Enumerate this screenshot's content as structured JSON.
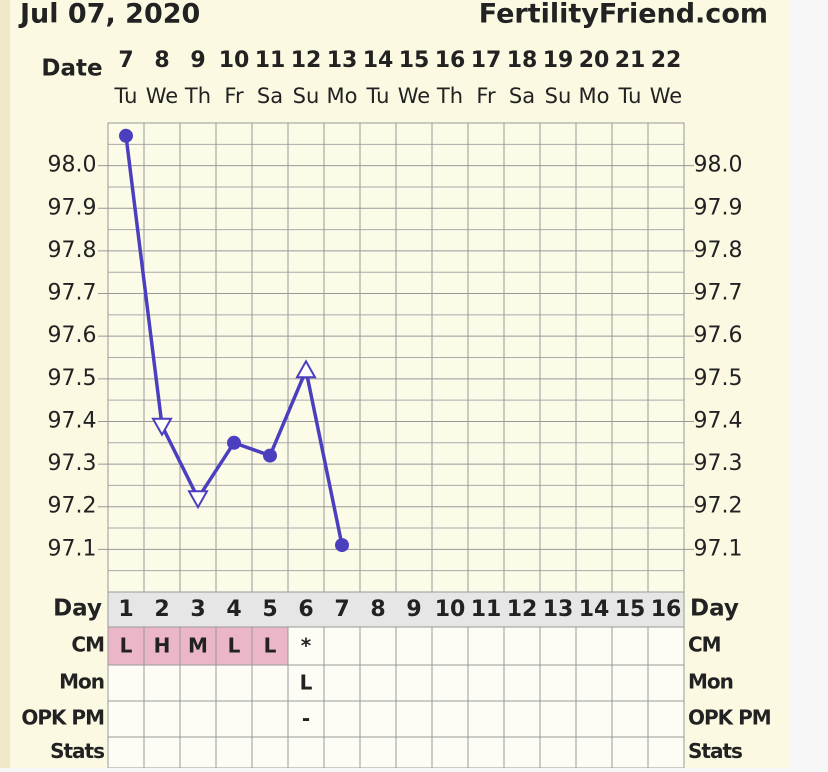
{
  "header": {
    "date": "Jul 07, 2020",
    "site": "FertilityFriend.com"
  },
  "chart_data": {
    "type": "line",
    "x_label": "Date",
    "categories": [
      "7",
      "8",
      "9",
      "10",
      "11",
      "12",
      "13",
      "14",
      "15",
      "16",
      "17",
      "18",
      "19",
      "20",
      "21",
      "22"
    ],
    "weekdays": [
      "Tu",
      "We",
      "Th",
      "Fr",
      "Sa",
      "Su",
      "Mo",
      "Tu",
      "We",
      "Th",
      "Fr",
      "Sa",
      "Su",
      "Mo",
      "Tu",
      "We"
    ],
    "values": [
      98.07,
      97.39,
      97.22,
      97.35,
      97.32,
      97.52,
      97.11,
      null,
      null,
      null,
      null,
      null,
      null,
      null,
      null,
      null
    ],
    "markers": [
      "circle",
      "triangle-down",
      "triangle-down",
      "circle",
      "circle",
      "triangle-up",
      "circle",
      null,
      null,
      null,
      null,
      null,
      null,
      null,
      null,
      null
    ],
    "color": "#4b3fbf",
    "ylim": [
      97.0,
      98.1
    ],
    "yticks": [
      {
        "value": 97.1,
        "label": "97.1"
      },
      {
        "value": 97.2,
        "label": "97.2"
      },
      {
        "value": 97.3,
        "label": "97.3"
      },
      {
        "value": 97.4,
        "label": "97.4"
      },
      {
        "value": 97.5,
        "label": "97.5"
      },
      {
        "value": 97.6,
        "label": "97.6"
      },
      {
        "value": 97.7,
        "label": "97.7"
      },
      {
        "value": 97.8,
        "label": "97.8"
      },
      {
        "value": 97.9,
        "label": "97.9"
      },
      {
        "value": 98.0,
        "label": "98.0"
      }
    ],
    "grid": true
  },
  "table": {
    "day_label": "Day",
    "days": [
      1,
      2,
      3,
      4,
      5,
      6,
      7,
      8,
      9,
      10,
      11,
      12,
      13,
      14,
      15,
      16
    ],
    "rows": [
      {
        "label": "CM",
        "cells": [
          "L",
          "H",
          "M",
          "L",
          "L",
          "*",
          null,
          null,
          null,
          null,
          null,
          null,
          null,
          null,
          null,
          null
        ],
        "highlight": [
          0,
          1,
          2,
          3,
          4
        ],
        "highlight_color": "#ebb6c8"
      },
      {
        "label": "Mon",
        "cells": [
          null,
          null,
          null,
          null,
          null,
          "L",
          null,
          null,
          null,
          null,
          null,
          null,
          null,
          null,
          null,
          null
        ]
      },
      {
        "label": "OPK PM",
        "cells": [
          null,
          null,
          null,
          null,
          null,
          "-",
          null,
          null,
          null,
          null,
          null,
          null,
          null,
          null,
          null,
          null
        ]
      },
      {
        "label": "Stats",
        "cells": [
          null,
          null,
          null,
          null,
          null,
          null,
          null,
          null,
          null,
          null,
          null,
          null,
          null,
          null,
          null,
          null
        ]
      }
    ]
  }
}
